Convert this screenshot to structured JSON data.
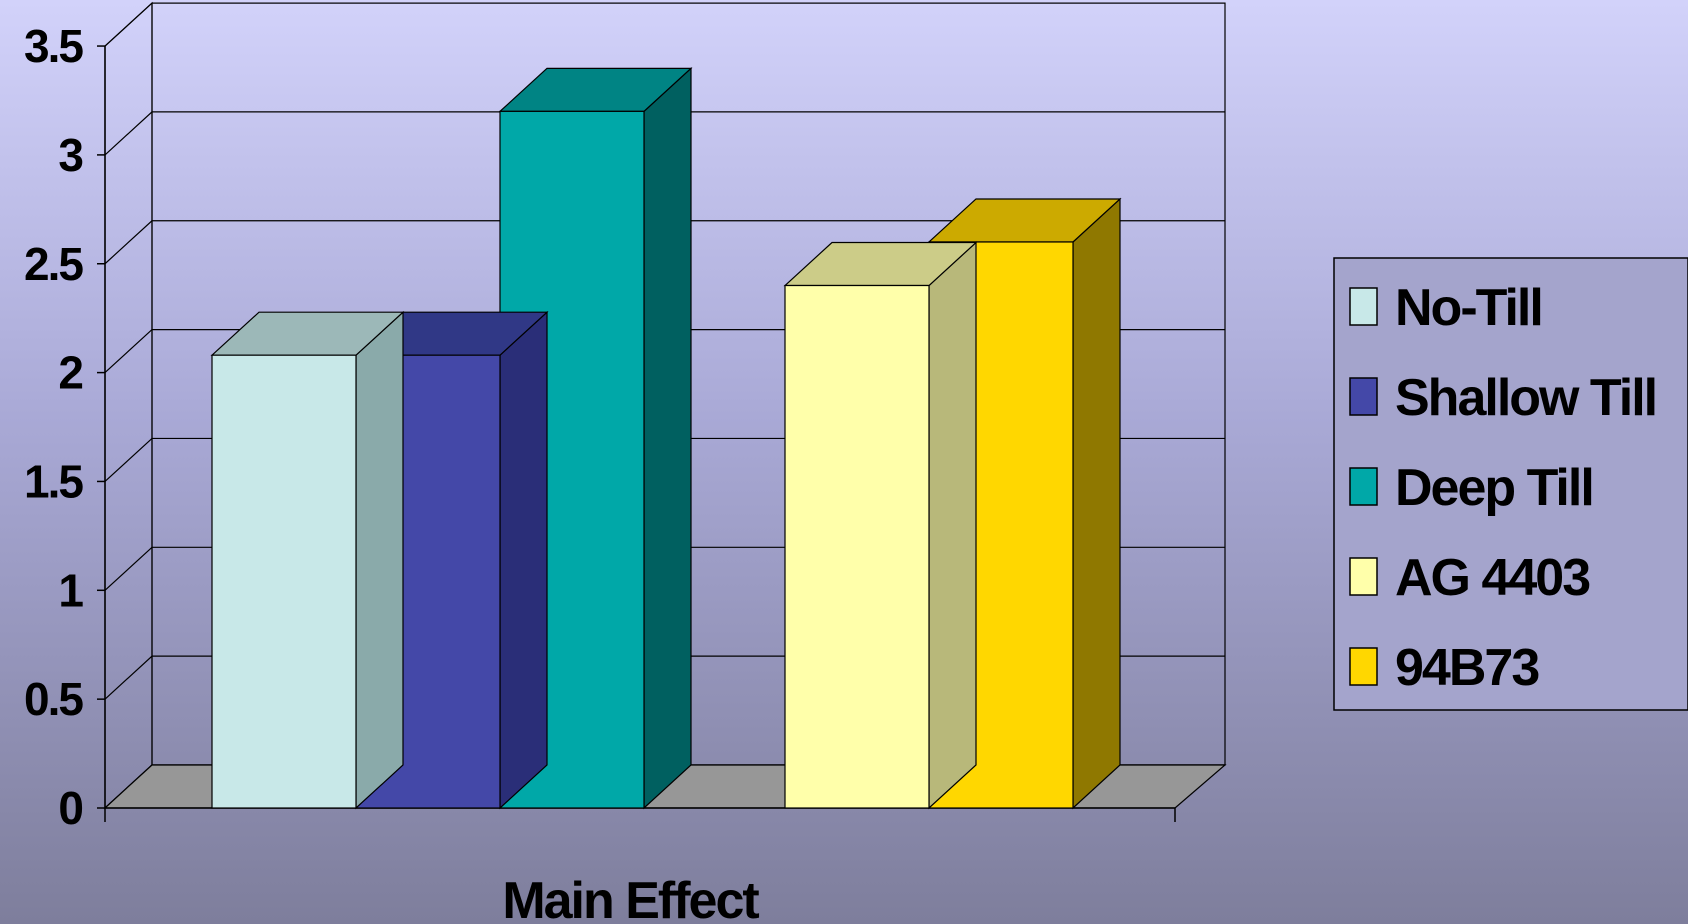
{
  "chart_data": {
    "type": "bar",
    "title": "",
    "xlabel": "",
    "ylabel": "",
    "categories": [
      "Main Effect"
    ],
    "ylim": [
      0,
      3.5
    ],
    "yticks": [
      "0",
      "0.5",
      "1",
      "1.5",
      "2",
      "2.5",
      "3",
      "3.5"
    ],
    "grid": true,
    "legend_position": "right",
    "groups": [
      {
        "bars": [
          {
            "name": "No-Till",
            "value": 2.08,
            "color": "#c8e8e8",
            "top": "#9cb8b8",
            "side": "#8aaaaa"
          },
          {
            "name": "Shallow Till",
            "value": 2.08,
            "color": "#4448a8",
            "top": "#303886",
            "side": "#2a2e78"
          },
          {
            "name": "Deep Till",
            "value": 3.2,
            "color": "#00a8a8",
            "top": "#008484",
            "side": "#006060"
          }
        ]
      },
      {
        "bars": [
          {
            "name": "AG 4403",
            "value": 2.4,
            "color": "#ffffaa",
            "top": "#cccc88",
            "side": "#b8b87a"
          },
          {
            "name": "94B73",
            "value": 2.6,
            "color": "#ffd700",
            "top": "#ccaa00",
            "side": "#8f7800"
          }
        ]
      }
    ],
    "legend": [
      {
        "label": "No-Till",
        "color": "#c8e8e8"
      },
      {
        "label": "Shallow Till",
        "color": "#4448a8"
      },
      {
        "label": "Deep Till",
        "color": "#00a8a8"
      },
      {
        "label": "AG 4403",
        "color": "#ffffaa"
      },
      {
        "label": "94B73",
        "color": "#ffd700"
      }
    ],
    "x_axis_label": "Main Effect"
  }
}
